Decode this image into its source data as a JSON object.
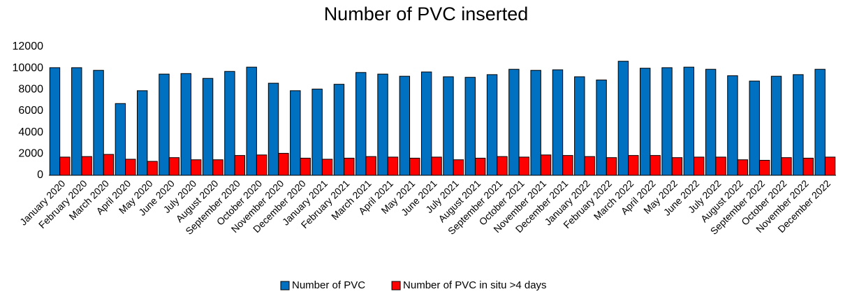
{
  "chart_data": {
    "type": "bar",
    "title": "Number of PVC inserted",
    "categories": [
      "January 2020",
      "February 2020",
      "March 2020",
      "April 2020",
      "May 2020",
      "June 2020",
      "July 2020",
      "August 2020",
      "September 2020",
      "October 2020",
      "November 2020",
      "December 2020",
      "January 2021",
      "February 2021",
      "March 2021",
      "April 2021",
      "May 2021",
      "June 2021",
      "July 2021",
      "August 2021",
      "September 2021",
      "October 2021",
      "November 2021",
      "December 2021",
      "January 2022",
      "February 2022",
      "March 2022",
      "April 2022",
      "May 2022",
      "June 2022",
      "July 2022",
      "August 2022",
      "September 2022",
      "October 2022",
      "November 2022",
      "December 2022"
    ],
    "series": [
      {
        "name": "Number of PVC",
        "color": "#0070c0",
        "values": [
          10050,
          10050,
          9800,
          6700,
          7900,
          9450,
          9500,
          9050,
          9700,
          10100,
          8600,
          7900,
          8050,
          8500,
          9600,
          9450,
          9250,
          9650,
          9200,
          9150,
          9400,
          9900,
          9800,
          9850,
          9200,
          8900,
          10650,
          10000,
          10050,
          10100,
          9900,
          9300,
          8800,
          9250,
          9400,
          9900
        ]
      },
      {
        "name": "Number of PVC in situ >4 days",
        "color": "#ff0000",
        "values": [
          1700,
          1750,
          1950,
          1500,
          1300,
          1650,
          1450,
          1450,
          1850,
          1900,
          2050,
          1600,
          1500,
          1600,
          1750,
          1700,
          1600,
          1700,
          1450,
          1600,
          1750,
          1700,
          1900,
          1850,
          1750,
          1650,
          1850,
          1850,
          1650,
          1700,
          1700,
          1450,
          1400,
          1650,
          1600,
          1700
        ]
      }
    ],
    "ylim": [
      0,
      12000
    ],
    "yticks": [
      0,
      2000,
      4000,
      6000,
      8000,
      10000,
      12000
    ],
    "grid": false,
    "legend": "bottom"
  }
}
